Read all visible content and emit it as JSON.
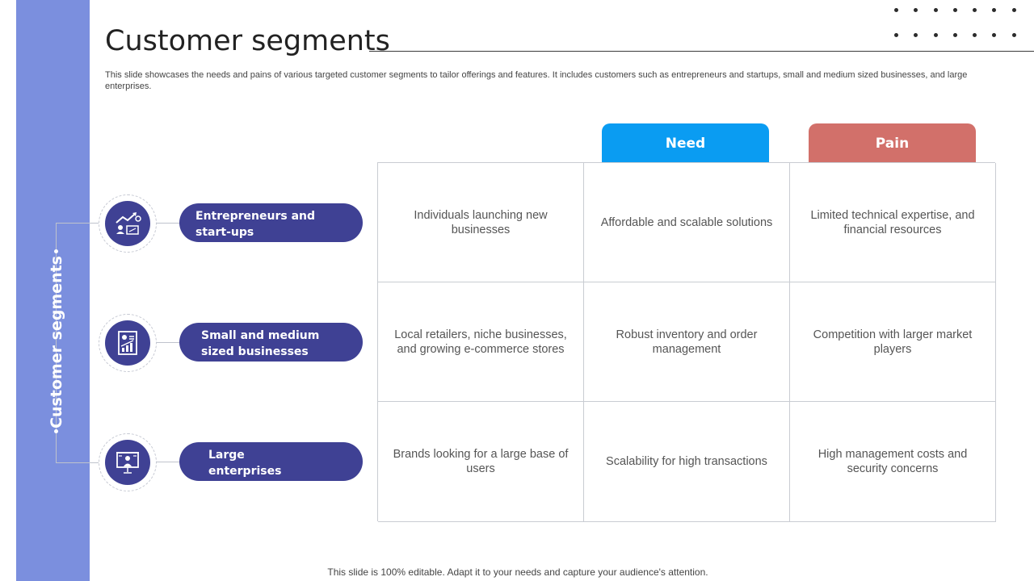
{
  "sidebar": {
    "title": "Customer segments",
    "color": "#7b8fde"
  },
  "header": {
    "title": "Customer segments",
    "description": "This slide showcases the needs and pains of various targeted customer segments to tailor offerings and features. It includes customers such as entrepreneurs and startups, small and medium sized businesses, and large enterprises."
  },
  "columns": {
    "need": "Need",
    "pain": "Pain"
  },
  "segments": [
    {
      "label_line1": "Entrepreneurs and",
      "label_line2": "start-ups",
      "icon": "growth-chart-icon",
      "description": "Individuals launching new businesses",
      "need": "Affordable and scalable solutions",
      "pain": "Limited technical expertise, and financial resources"
    },
    {
      "label_line1": "Small and medium",
      "label_line2": "sized businesses",
      "icon": "business-report-icon",
      "description": "Local retailers, niche businesses, and growing e-commerce stores",
      "need": "Robust inventory and order management",
      "pain": "Competition with larger market players"
    },
    {
      "label_line1": "Large",
      "label_line2": "enterprises",
      "icon": "presentation-board-icon",
      "description": "Brands looking for a large base of users",
      "need": "Scalability for high transactions",
      "pain": "High management costs and security concerns"
    }
  ],
  "footer": "This slide is 100% editable. Adapt it to your needs and capture your audience's attention.",
  "colors": {
    "segment": "#3f4194",
    "need": "#0a9cf2",
    "pain": "#d2706a"
  }
}
